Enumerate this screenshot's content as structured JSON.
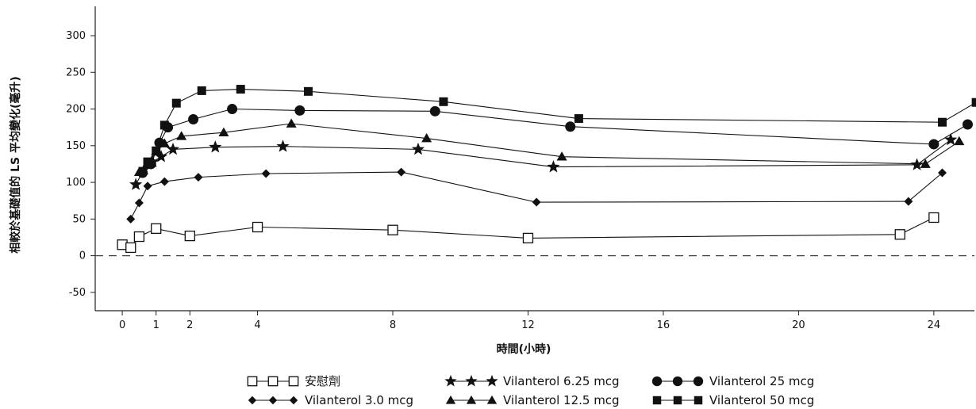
{
  "chart_data": {
    "type": "line",
    "title": "",
    "xlabel": "時間(小時)",
    "ylabel": "相較於基礎值的 LS 平均變化(毫升)",
    "xlim": [
      -0.8,
      25.2
    ],
    "ylim": [
      -75,
      340
    ],
    "xticks": [
      0,
      1,
      2,
      4,
      8,
      12,
      16,
      20,
      24
    ],
    "yticks": [
      -50,
      0,
      50,
      100,
      150,
      200,
      250,
      300
    ],
    "reference_line_y": 0,
    "grid": false,
    "legend_position": "bottom",
    "series": [
      {
        "name": "安慰劑",
        "marker": "open-square",
        "x": [
          0,
          0.25,
          0.5,
          1,
          2,
          4,
          8,
          12,
          23,
          24
        ],
        "y": [
          15,
          11,
          26,
          37,
          27,
          39,
          35,
          24,
          29,
          52
        ]
      },
      {
        "name": "Vilanterol 3.0 mcg",
        "marker": "diamond",
        "x": [
          0.25,
          0.5,
          0.75,
          1.25,
          2.25,
          4.25,
          8.25,
          12.25,
          23.25,
          24.25
        ],
        "y": [
          50,
          72,
          95,
          101,
          107,
          112,
          114,
          73,
          74,
          113
        ]
      },
      {
        "name": "Vilanterol 6.25 mcg",
        "marker": "star",
        "x": [
          0.4,
          0.65,
          0.9,
          1.15,
          1.5,
          2.75,
          4.75,
          8.75,
          12.75,
          23.5,
          24.5
        ],
        "y": [
          97,
          118,
          128,
          135,
          145,
          148,
          149,
          145,
          121,
          124,
          158
        ]
      },
      {
        "name": "Vilanterol 12.5 mcg",
        "marker": "triangle",
        "x": [
          0.5,
          0.75,
          1.0,
          1.25,
          1.75,
          3.0,
          5.0,
          9.0,
          13.0,
          23.75,
          24.75
        ],
        "y": [
          114,
          124,
          142,
          153,
          163,
          168,
          180,
          160,
          135,
          125,
          156
        ]
      },
      {
        "name": "Vilanterol 25 mcg",
        "marker": "circle",
        "x": [
          0.6,
          0.85,
          1.1,
          1.35,
          2.1,
          3.25,
          5.25,
          9.25,
          13.25,
          24.0,
          25.0
        ],
        "y": [
          113,
          125,
          154,
          175,
          186,
          200,
          198,
          197,
          176,
          152,
          179
        ]
      },
      {
        "name": "Vilanterol 50 mcg",
        "marker": "square",
        "x": [
          0.75,
          1.0,
          1.25,
          1.6,
          2.35,
          3.5,
          5.5,
          9.5,
          13.5,
          24.25,
          25.25
        ],
        "y": [
          128,
          143,
          178,
          208,
          225,
          227,
          224,
          210,
          187,
          182,
          209
        ]
      }
    ],
    "legend_layout": [
      [
        0,
        2,
        4
      ],
      [
        1,
        3,
        5
      ]
    ]
  }
}
